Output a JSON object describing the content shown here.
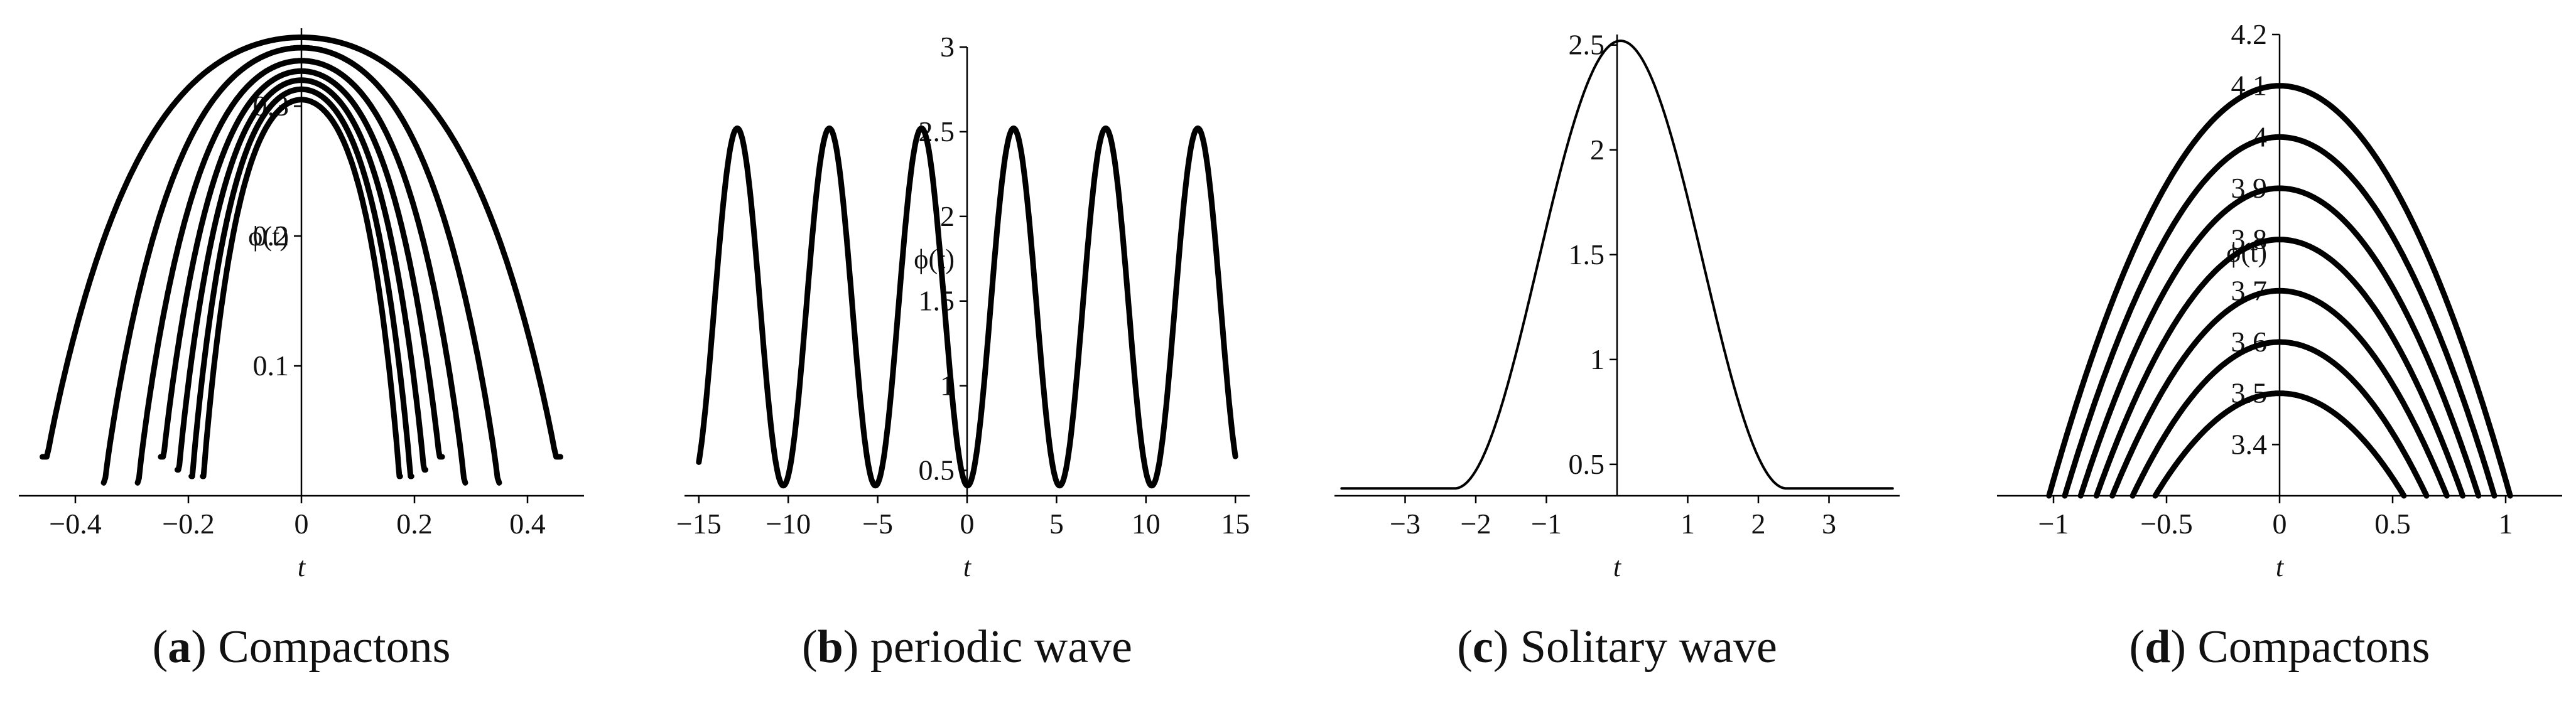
{
  "chart_data": [
    {
      "type": "line",
      "caption_letter": "a",
      "caption_text": "Compactons",
      "xlabel": "t",
      "ylabel": "ϕ(t)",
      "xlim": [
        -0.5,
        0.5
      ],
      "ylim": [
        0.0,
        0.36
      ],
      "x_ticks": [
        {
          "v": -0.4,
          "label": "−0.4"
        },
        {
          "v": -0.2,
          "label": "−0.2"
        },
        {
          "v": 0,
          "label": "0"
        },
        {
          "v": 0.2,
          "label": "0.2"
        },
        {
          "v": 0.4,
          "label": "0.4"
        }
      ],
      "y_ticks": [
        {
          "v": 0.1,
          "label": "0.1"
        },
        {
          "v": 0.2,
          "label": "0.2"
        },
        {
          "v": 0.3,
          "label": "0.3"
        }
      ],
      "series": [
        {
          "shape": "cap",
          "a": 0.46,
          "peak": 0.353,
          "y_end": 0.03
        },
        {
          "shape": "cap",
          "a": 0.35,
          "peak": 0.345,
          "y_end": 0.01
        },
        {
          "shape": "cap",
          "a": 0.29,
          "peak": 0.335,
          "y_end": 0.01
        },
        {
          "shape": "cap",
          "a": 0.25,
          "peak": 0.327,
          "y_end": 0.03
        },
        {
          "shape": "cap",
          "a": 0.22,
          "peak": 0.32,
          "y_end": 0.02
        },
        {
          "shape": "cap",
          "a": 0.195,
          "peak": 0.313,
          "y_end": 0.015
        },
        {
          "shape": "cap",
          "a": 0.175,
          "peak": 0.305,
          "y_end": 0.015
        }
      ]
    },
    {
      "type": "line",
      "caption_letter": "b",
      "caption_text": "periodic wave",
      "xlabel": "t",
      "ylabel": "ϕ(t)",
      "xlim": [
        -15.8,
        15.8
      ],
      "ylim": [
        0.35,
        3.0
      ],
      "x_ticks": [
        {
          "v": -15,
          "label": "−15"
        },
        {
          "v": -10,
          "label": "−10"
        },
        {
          "v": -5,
          "label": "−5"
        },
        {
          "v": 0,
          "label": "0"
        },
        {
          "v": 5,
          "label": "5"
        },
        {
          "v": 10,
          "label": "10"
        },
        {
          "v": 15,
          "label": "15"
        }
      ],
      "y_ticks": [
        {
          "v": 0.5,
          "label": "0.5"
        },
        {
          "v": 1,
          "label": "1"
        },
        {
          "v": 1.5,
          "label": "1.5"
        },
        {
          "v": 2,
          "label": "2"
        },
        {
          "v": 2.5,
          "label": "2.5"
        },
        {
          "v": 3,
          "label": "3"
        }
      ],
      "series": [
        {
          "shape": "cosine",
          "x_min": -15,
          "x_max": 15,
          "mid": 1.465,
          "amp": 1.055,
          "period": 5.15,
          "phase": 2.6
        }
      ]
    },
    {
      "type": "line",
      "caption_letter": "c",
      "caption_text": "Solitary wave",
      "xlabel": "t",
      "ylabel": "",
      "xlim": [
        -4.0,
        4.0
      ],
      "ylim": [
        0.35,
        2.55
      ],
      "x_ticks": [
        {
          "v": -3,
          "label": "−3"
        },
        {
          "v": -2,
          "label": "−2"
        },
        {
          "v": -1,
          "label": "−1"
        },
        {
          "v": 1,
          "label": "1"
        },
        {
          "v": 2,
          "label": "2"
        },
        {
          "v": 3,
          "label": "3"
        }
      ],
      "y_ticks": [
        {
          "v": 0.5,
          "label": "0.5"
        },
        {
          "v": 1,
          "label": "1"
        },
        {
          "v": 1.5,
          "label": "1.5"
        },
        {
          "v": 2,
          "label": "2"
        },
        {
          "v": 2.5,
          "label": "2.5"
        }
      ],
      "series": [
        {
          "shape": "bump",
          "x_min": -3.9,
          "x_max": 3.9,
          "base": 0.385,
          "height": 2.135,
          "half_width": 2.35,
          "center": 0.05
        }
      ]
    },
    {
      "type": "line",
      "caption_letter": "d",
      "caption_text": "Compactons",
      "xlabel": "t",
      "ylabel": "ϕ(t)",
      "xlim": [
        -1.25,
        1.25
      ],
      "ylim": [
        3.3,
        4.2
      ],
      "x_ticks": [
        {
          "v": -1,
          "label": "−1"
        },
        {
          "v": -0.5,
          "label": "−0.5"
        },
        {
          "v": 0,
          "label": "0"
        },
        {
          "v": 0.5,
          "label": "0.5"
        },
        {
          "v": 1,
          "label": "1"
        }
      ],
      "y_ticks": [
        {
          "v": 3.4,
          "label": "3.4"
        },
        {
          "v": 3.5,
          "label": "3.5"
        },
        {
          "v": 3.6,
          "label": "3.6"
        },
        {
          "v": 3.7,
          "label": "3.7"
        },
        {
          "v": 3.8,
          "label": "3.8"
        },
        {
          "v": 3.9,
          "label": "3.9"
        },
        {
          "v": 4,
          "label": "4"
        },
        {
          "v": 4.1,
          "label": "4.1"
        },
        {
          "v": 4.2,
          "label": "4.2"
        }
      ],
      "series": [
        {
          "shape": "parabola",
          "peak": 4.1,
          "half_width": 1.02
        },
        {
          "shape": "parabola",
          "peak": 4.0,
          "half_width": 0.95
        },
        {
          "shape": "parabola",
          "peak": 3.9,
          "half_width": 0.88
        },
        {
          "shape": "parabola",
          "peak": 3.8,
          "half_width": 0.81
        },
        {
          "shape": "parabola",
          "peak": 3.7,
          "half_width": 0.74
        },
        {
          "shape": "parabola",
          "peak": 3.6,
          "half_width": 0.65
        },
        {
          "shape": "parabola",
          "peak": 3.5,
          "half_width": 0.55
        }
      ]
    }
  ],
  "colors": {
    "line": "#000000",
    "axis": "#000000",
    "text": "#111111"
  }
}
